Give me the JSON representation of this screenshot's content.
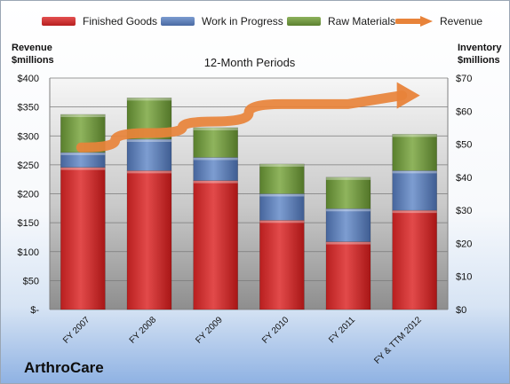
{
  "legend": {
    "finished_goods": "Finished Goods",
    "work_in_progress": "Work in Progress",
    "raw_materials": "Raw Materials",
    "revenue": "Revenue"
  },
  "axes": {
    "left_title_line1": "Revenue",
    "left_title_line2": "$millions",
    "right_title_line1": "Inventory",
    "right_title_line2": "$millions"
  },
  "company": "ArthroCare",
  "colors": {
    "finished_goods": "#d32f2f",
    "work_in_progress": "#5b7fb8",
    "raw_materials": "#6e973d",
    "revenue": "#e8833a"
  },
  "chart_data": {
    "type": "bar",
    "title": "12-Month Periods",
    "categories": [
      "FY 2007",
      "FY 2008",
      "FY 2009",
      "FY 2010",
      "FY 2011",
      "FY & TTM 2012"
    ],
    "series": [
      {
        "name": "Finished Goods",
        "axis": "right",
        "values": [
          43,
          42,
          39,
          27,
          20.5,
          30
        ]
      },
      {
        "name": "Work in Progress",
        "axis": "right",
        "values": [
          4.5,
          9.5,
          7,
          8,
          10,
          12
        ]
      },
      {
        "name": "Raw Materials",
        "axis": "right",
        "values": [
          11.5,
          12.5,
          9,
          9,
          9.5,
          11
        ]
      },
      {
        "name": "Revenue",
        "axis": "left",
        "type": "line",
        "values": [
          280,
          305,
          325,
          355,
          355,
          370
        ]
      }
    ],
    "stacked": true,
    "ylim_left": [
      0,
      400
    ],
    "ylim_right": [
      0,
      70
    ],
    "yticks_left": [
      "$-",
      "$50",
      "$100",
      "$150",
      "$200",
      "$250",
      "$300",
      "$350",
      "$400"
    ],
    "yticks_right": [
      "$0",
      "$10",
      "$20",
      "$30",
      "$40",
      "$50",
      "$60",
      "$70"
    ],
    "grid": true,
    "legend_position": "top"
  }
}
